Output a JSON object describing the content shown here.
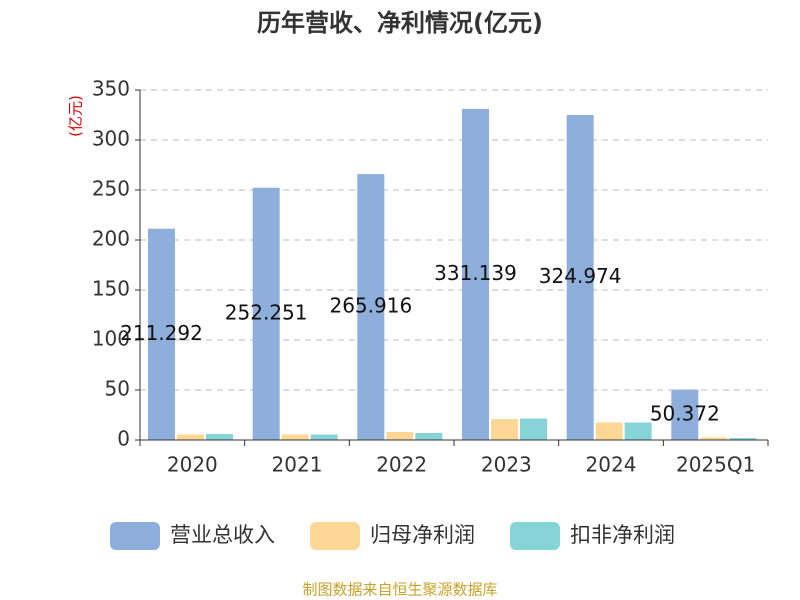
{
  "chart_data": {
    "type": "bar",
    "title": "历年营收、净利情况(亿元)",
    "y_axis_label": "(亿元)",
    "categories": [
      "2020",
      "2021",
      "2022",
      "2023",
      "2024",
      "2025Q1"
    ],
    "series": [
      {
        "name": "营业总收入",
        "color": "#8eaedb",
        "values": [
          211.292,
          252.251,
          265.916,
          331.139,
          324.974,
          50.372
        ]
      },
      {
        "name": "归母净利润",
        "color": "#fdd796",
        "values": [
          5.5,
          5.5,
          8,
          21,
          17.5,
          2.5
        ]
      },
      {
        "name": "扣非净利润",
        "color": "#86d4d8",
        "values": [
          6,
          5.5,
          7,
          21.5,
          17.5,
          2
        ]
      }
    ],
    "ylim": [
      0,
      350
    ],
    "yticks": [
      0,
      50,
      100,
      150,
      200,
      250,
      300,
      350
    ],
    "grid": true,
    "source": "制图数据来自恒生聚源数据库"
  }
}
